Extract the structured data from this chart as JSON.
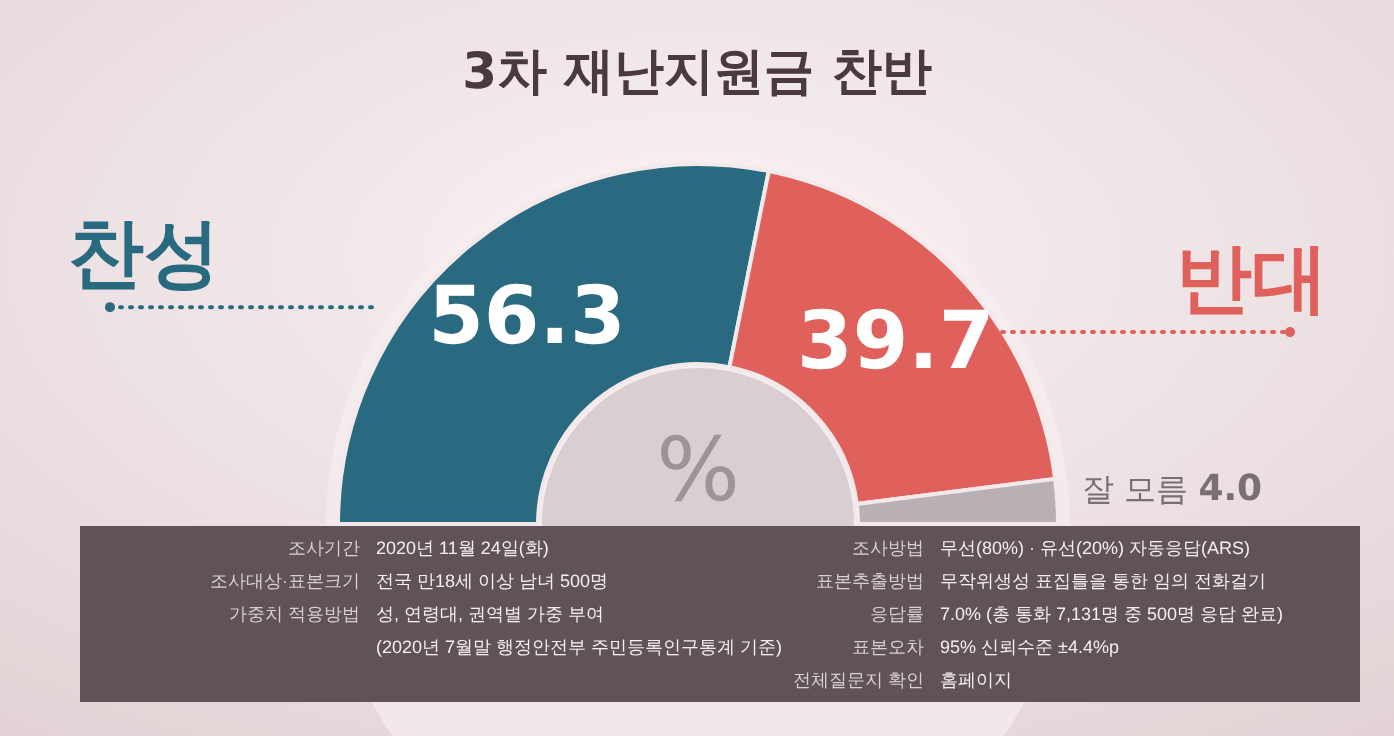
{
  "chart_data": {
    "type": "donut",
    "title": "3차 재난지원금 찬반",
    "categories": [
      "찬성",
      "반대",
      "잘 모름"
    ],
    "values": [
      56.3,
      39.7,
      4.0
    ],
    "colors": [
      "#2a6a80",
      "#e0605c",
      "#b9b0b5"
    ],
    "value_labels": [
      "56.3",
      "39.7",
      "4.0"
    ],
    "annotations": [
      "%",
      "조사기간",
      "2020년 11월 24일(화)",
      "조사대상·표본크기",
      "전국 만18세 이상 남녀 500명",
      "가중치 적용방법",
      "성, 연령대, 권역별 가중 부여",
      "(2020년 7월말 행정안전부 주민등록인구통계 기준)",
      "조사방법",
      "무선(80%) · 유선(20%) 자동응답(ARS)",
      "표본추출방법",
      "무작위생성 표집틀을 통한 임의 전화걸기",
      "응답률",
      "7.0% (총 통화 7,131명 중 500명 응답 완료)",
      "표본오차",
      "95% 신뢰수준 ±4.4%p",
      "전체질문지 확인",
      "홈페이지"
    ]
  }
}
